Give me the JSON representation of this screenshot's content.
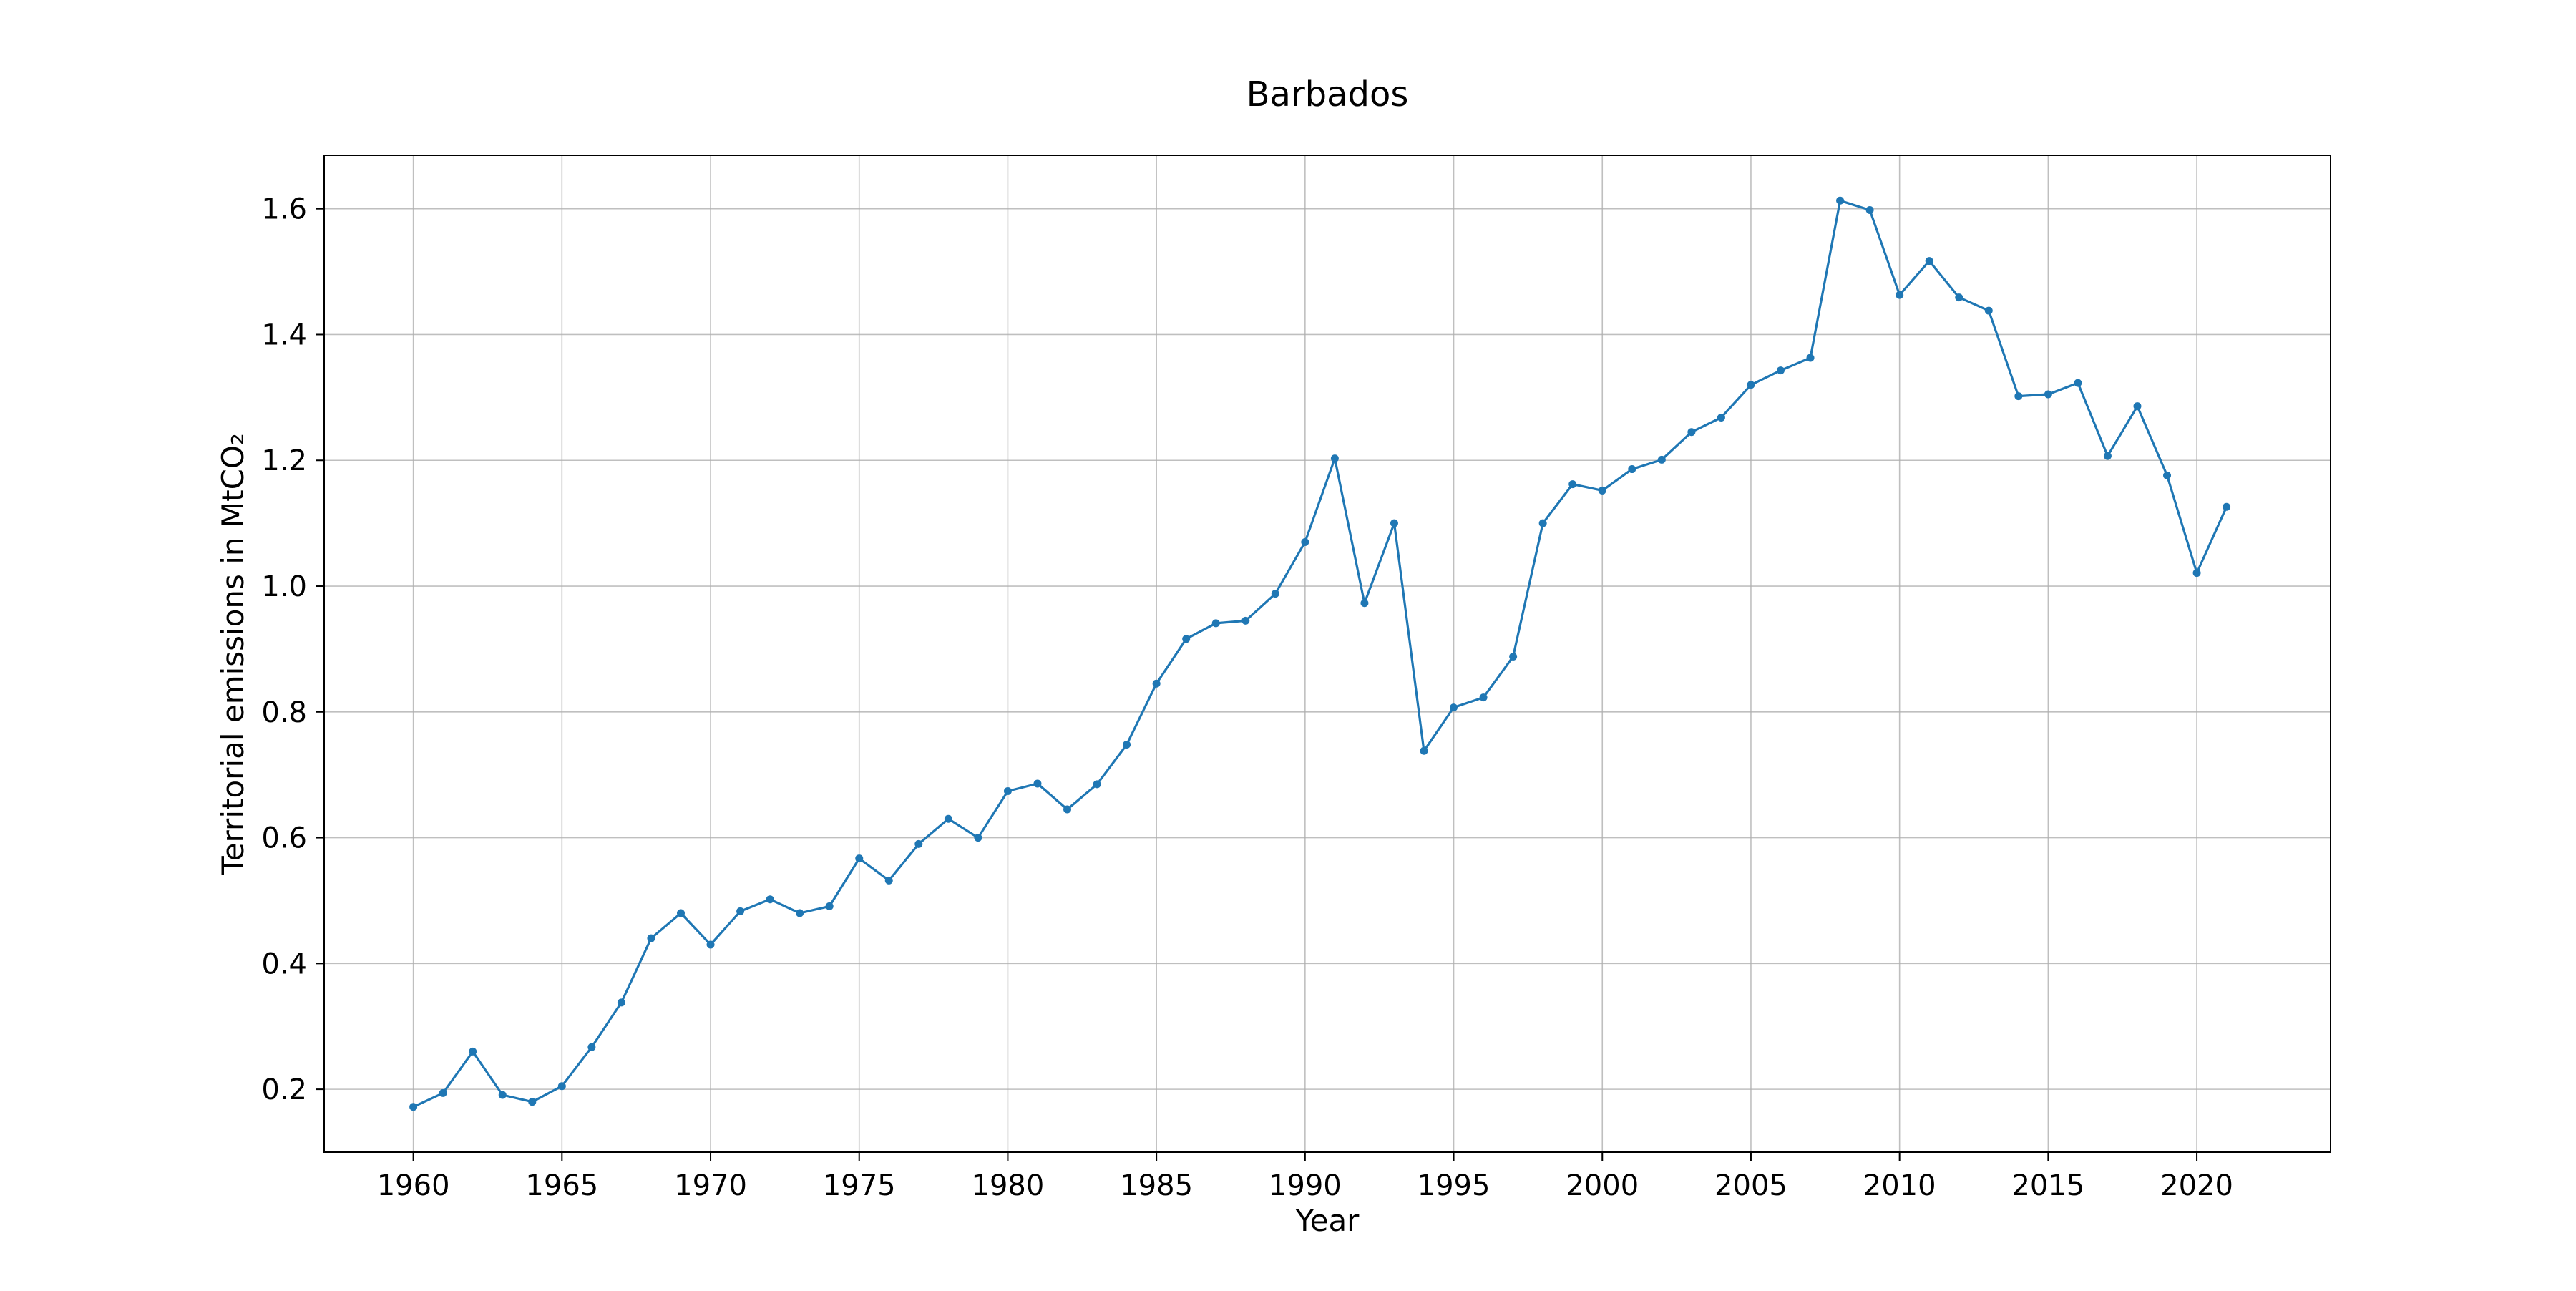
{
  "chart_data": {
    "type": "line",
    "title": "Barbados",
    "xlabel": "Year",
    "ylabel": "Territorial emissions in MtCO₂",
    "xlim": [
      1957,
      2024.5
    ],
    "ylim": [
      0.1,
      1.685
    ],
    "xticks": [
      1960,
      1965,
      1970,
      1975,
      1980,
      1985,
      1990,
      1995,
      2000,
      2005,
      2010,
      2015,
      2020
    ],
    "yticks": [
      0.2,
      0.4,
      0.6,
      0.8,
      1.0,
      1.2,
      1.4,
      1.6
    ],
    "ytick_labels": [
      "0.2",
      "0.4",
      "0.6",
      "0.8",
      "1.0",
      "1.2",
      "1.4",
      "1.6"
    ],
    "grid": true,
    "marker": "circle",
    "color": "#1f77b4",
    "x": [
      1960,
      1961,
      1962,
      1963,
      1964,
      1965,
      1966,
      1967,
      1968,
      1969,
      1970,
      1971,
      1972,
      1973,
      1974,
      1975,
      1976,
      1977,
      1978,
      1979,
      1980,
      1981,
      1982,
      1983,
      1984,
      1985,
      1986,
      1987,
      1988,
      1989,
      1990,
      1991,
      1992,
      1993,
      1994,
      1995,
      1996,
      1997,
      1998,
      1999,
      2000,
      2001,
      2002,
      2003,
      2004,
      2005,
      2006,
      2007,
      2008,
      2009,
      2010,
      2011,
      2012,
      2013,
      2014,
      2015,
      2016,
      2017,
      2018,
      2019,
      2020,
      2021
    ],
    "y": [
      0.172,
      0.194,
      0.26,
      0.191,
      0.18,
      0.205,
      0.267,
      0.338,
      0.44,
      0.48,
      0.43,
      0.483,
      0.502,
      0.48,
      0.491,
      0.567,
      0.532,
      0.59,
      0.63,
      0.6,
      0.674,
      0.686,
      0.645,
      0.685,
      0.748,
      0.845,
      0.916,
      0.941,
      0.945,
      0.988,
      1.07,
      1.203,
      0.973,
      1.1,
      0.738,
      0.807,
      0.823,
      0.888,
      1.1,
      1.162,
      1.152,
      1.186,
      1.201,
      1.245,
      1.268,
      1.32,
      1.343,
      1.363,
      1.613,
      1.598,
      1.463,
      1.517,
      1.459,
      1.438,
      1.302,
      1.305,
      1.323,
      1.207,
      1.286,
      1.176,
      1.021,
      1.126
    ]
  }
}
